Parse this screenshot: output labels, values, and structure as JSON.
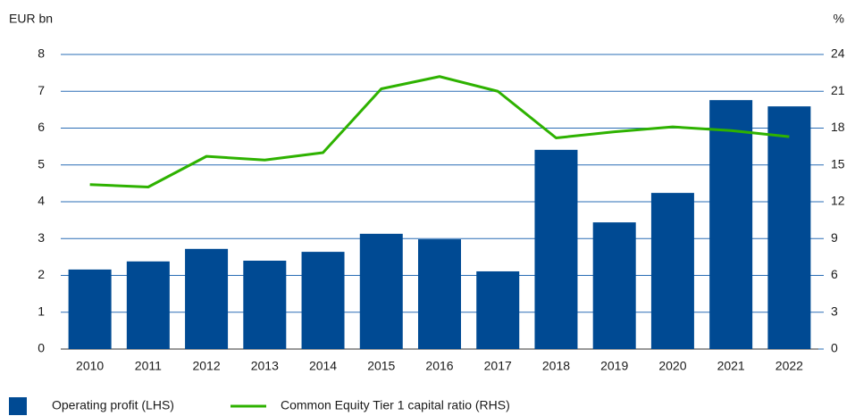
{
  "chart_data": {
    "type": "bar_line",
    "y_label": "EUR bn",
    "y2_label": "%",
    "categories": [
      "2010",
      "2011",
      "2012",
      "2013",
      "2014",
      "2015",
      "2016",
      "2017",
      "2018",
      "2019",
      "2020",
      "2021",
      "2022"
    ],
    "series": [
      {
        "name": "Operating profit (LHS)",
        "color": "#004a93",
        "type": "bar",
        "values": [
          2.16,
          2.38,
          2.72,
          2.4,
          2.64,
          3.13,
          2.98,
          2.11,
          5.41,
          3.44,
          4.24,
          6.76,
          6.59
        ]
      },
      {
        "name": "Common Equity Tier 1 capital ratio (RHS)",
        "color": "#2eb200",
        "type": "line",
        "axis": "y2",
        "values": [
          13.4,
          13.2,
          15.7,
          15.4,
          16.0,
          21.2,
          22.2,
          21.0,
          17.2,
          17.7,
          18.1,
          17.8,
          17.3
        ]
      }
    ],
    "ylim": [
      0,
      8
    ],
    "yticks": [
      0,
      1,
      2,
      3,
      4,
      5,
      6,
      7,
      8
    ],
    "y2lim": [
      0,
      24
    ],
    "y2ticks": [
      0,
      3,
      6,
      9,
      12,
      15,
      18,
      21,
      24
    ],
    "grid": true
  }
}
